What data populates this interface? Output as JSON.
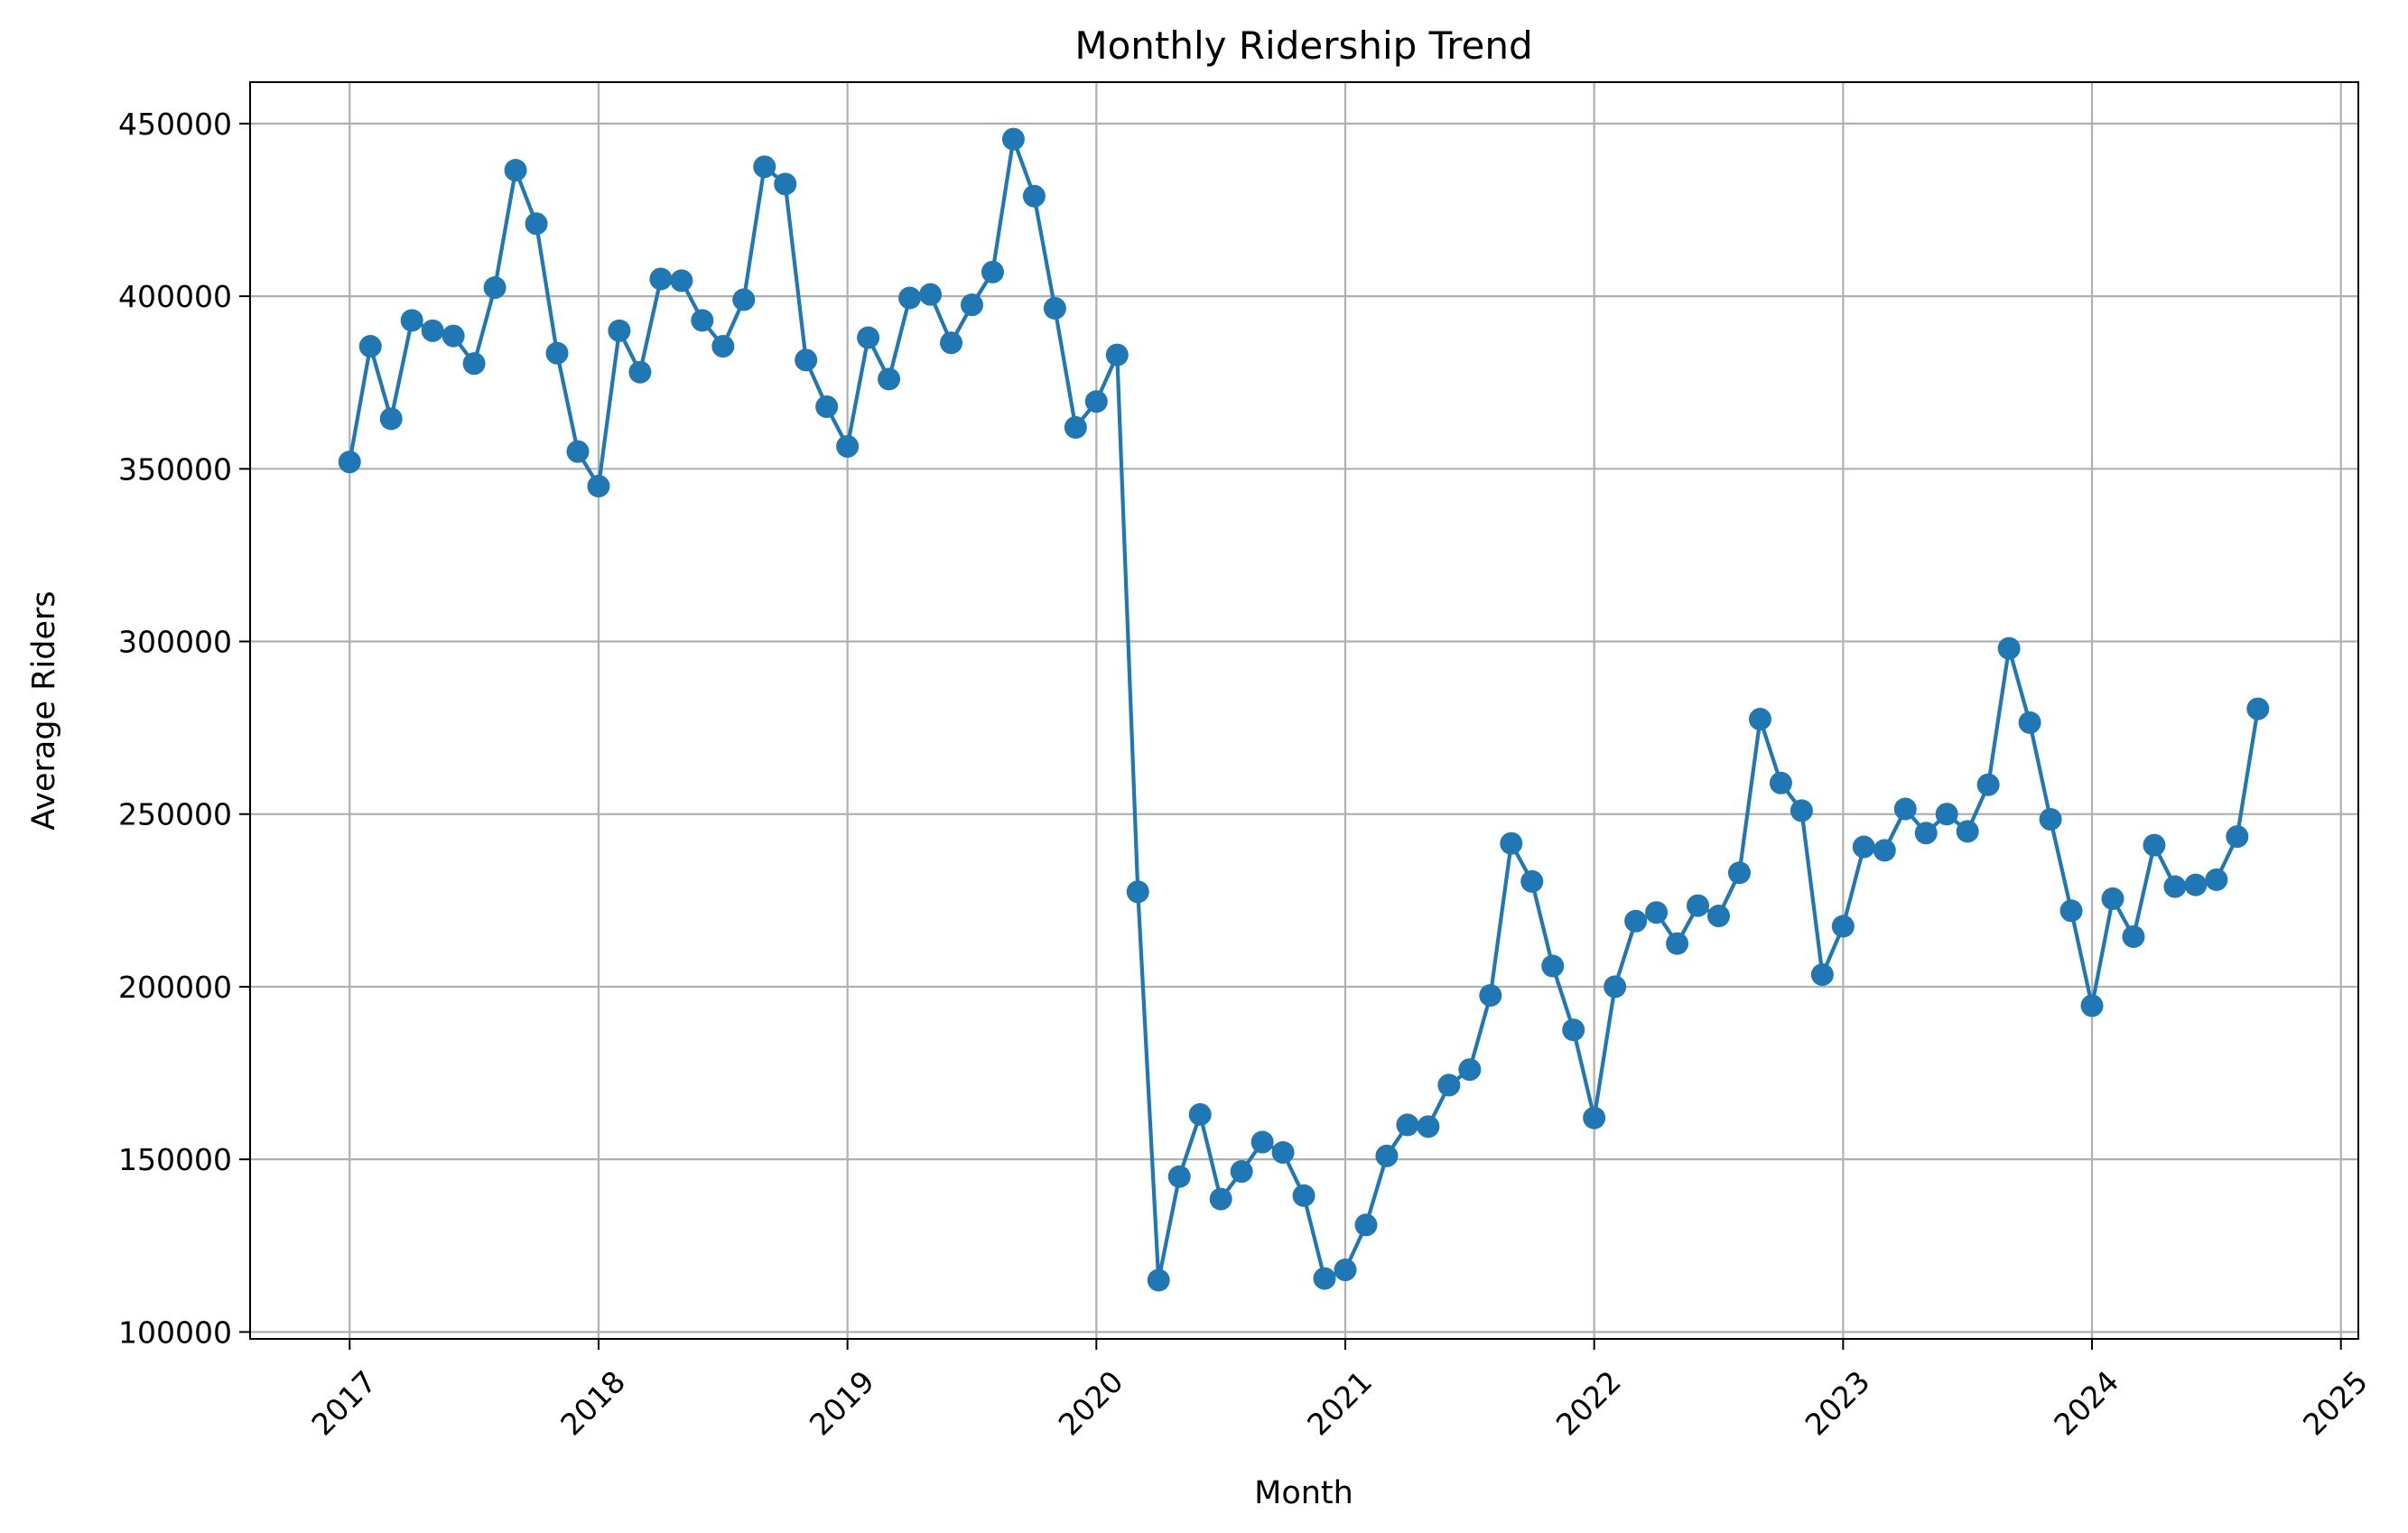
{
  "chart_data": {
    "type": "line",
    "title": "Monthly Ridership Trend",
    "xlabel": "Month",
    "ylabel": "Average Riders",
    "x_start": "2017-01",
    "x_ticks": [
      "2017",
      "2018",
      "2019",
      "2020",
      "2021",
      "2022",
      "2023",
      "2024",
      "2025"
    ],
    "y_ticks": [
      100000,
      150000,
      200000,
      250000,
      300000,
      350000,
      400000,
      450000
    ],
    "ylim": [
      98000,
      462000
    ],
    "grid": true,
    "color": "#1f77b4",
    "series": [
      {
        "name": "",
        "values": [
          352000,
          385500,
          364500,
          393000,
          390000,
          388500,
          380500,
          402500,
          436500,
          421000,
          383500,
          355000,
          345000,
          390000,
          378000,
          405000,
          404500,
          393000,
          385500,
          399000,
          437500,
          432500,
          381500,
          368000,
          356500,
          388000,
          376000,
          399500,
          400500,
          386500,
          397500,
          407000,
          445500,
          429000,
          396500,
          362000,
          369500,
          383000,
          227500,
          115000,
          145000,
          163000,
          138500,
          146500,
          155000,
          152000,
          139500,
          115500,
          118000,
          131000,
          151000,
          160000,
          159500,
          171500,
          176000,
          197500,
          241500,
          230500,
          206000,
          187500,
          162000,
          200000,
          219000,
          221500,
          212500,
          223500,
          220500,
          233000,
          277500,
          259000,
          251000,
          203500,
          217500,
          240500,
          239500,
          251500,
          244500,
          250000,
          245000,
          258500,
          298000,
          276500,
          248500,
          222000,
          194500,
          225500,
          214500,
          241000,
          229000,
          229500,
          231000,
          243500,
          280500
        ]
      }
    ]
  }
}
